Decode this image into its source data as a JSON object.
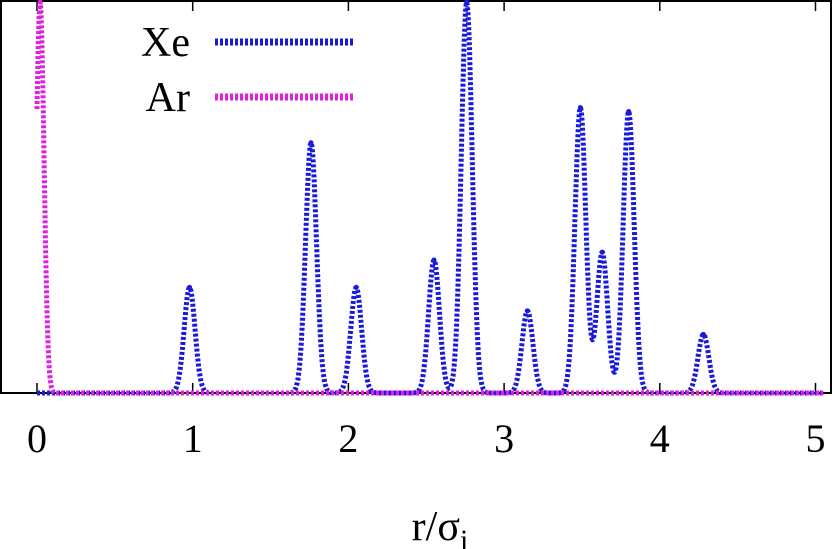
{
  "chart_data": {
    "type": "line",
    "title": "",
    "xlabel": "r/σi",
    "xlabel_parts": {
      "main": "r/σ",
      "subscript": "i"
    },
    "ylabel": "",
    "xlim": [
      0,
      5.05
    ],
    "ylim": [
      0,
      1.0
    ],
    "x_ticks": [
      0,
      1,
      2,
      3,
      4,
      5
    ],
    "x_tick_labels": [
      "0",
      "1",
      "2",
      "3",
      "4",
      "5"
    ],
    "grid": false,
    "legend_position": "top-left",
    "series": [
      {
        "name": "Xe",
        "color": "#1a1adb",
        "style": "dashed",
        "peaks": [
          {
            "x": 0.98,
            "height": 0.27
          },
          {
            "x": 1.76,
            "height": 0.64
          },
          {
            "x": 2.05,
            "height": 0.27
          },
          {
            "x": 2.55,
            "height": 0.34
          },
          {
            "x": 2.76,
            "height": 1.0
          },
          {
            "x": 3.15,
            "height": 0.21
          },
          {
            "x": 3.49,
            "height": 0.73
          },
          {
            "x": 3.63,
            "height": 0.36
          },
          {
            "x": 3.8,
            "height": 0.72
          },
          {
            "x": 4.28,
            "height": 0.15
          }
        ]
      },
      {
        "name": "Ar",
        "color": "#e020e0",
        "style": "dashed",
        "peaks": [
          {
            "x": 0.02,
            "height": 1.0
          }
        ]
      }
    ]
  }
}
